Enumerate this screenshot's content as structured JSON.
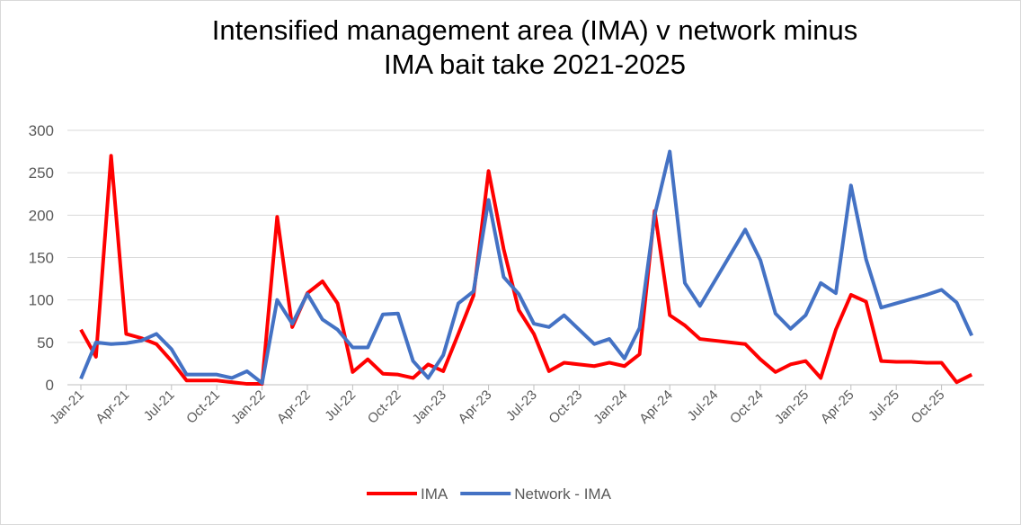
{
  "chart_data": {
    "type": "line",
    "title": [
      "Intensified management area  (IMA)  v network minus",
      "IMA bait take 2021-2025"
    ],
    "categories": [
      "Jan-21",
      null,
      null,
      "Apr-21",
      null,
      null,
      "Jul-21",
      null,
      null,
      "Oct-21",
      null,
      null,
      "Jan-22",
      null,
      null,
      "Apr-22",
      null,
      null,
      "Jul-22",
      null,
      null,
      "Oct-22",
      null,
      null,
      "Jan-23",
      null,
      null,
      "Apr-23",
      null,
      null,
      "Jul-23",
      null,
      null,
      "Oct-23",
      null,
      null,
      "Jan-24",
      null,
      null,
      "Apr-24",
      null,
      null,
      "Jul-24",
      null,
      null,
      "Oct-24",
      null,
      null,
      "Jan-25",
      null,
      null,
      "Apr-25",
      null,
      null,
      "Jul-25",
      null,
      null,
      "Oct-25",
      null,
      null
    ],
    "series": [
      {
        "name": "IMA",
        "color": "#ff0000",
        "values": [
          65,
          33,
          270,
          60,
          55,
          48,
          28,
          5,
          5,
          5,
          3,
          1,
          1,
          198,
          68,
          108,
          122,
          96,
          15,
          30,
          13,
          12,
          8,
          24,
          16,
          60,
          105,
          252,
          160,
          88,
          60,
          16,
          26,
          24,
          22,
          26,
          22,
          36,
          205,
          82,
          70,
          54,
          52,
          50,
          48,
          30,
          15,
          24,
          28,
          8,
          65,
          106,
          98,
          28,
          27,
          27,
          26,
          26,
          3,
          12
        ]
      },
      {
        "name": "Network - IMA",
        "color": "#4472c4",
        "values": [
          7,
          50,
          48,
          49,
          52,
          60,
          42,
          12,
          12,
          12,
          8,
          16,
          2,
          100,
          72,
          107,
          77,
          65,
          44,
          44,
          83,
          84,
          28,
          8,
          35,
          96,
          110,
          218,
          127,
          107,
          72,
          68,
          82,
          65,
          48,
          54,
          31,
          67,
          200,
          275,
          120,
          93,
          123,
          153,
          183,
          147,
          84,
          66,
          82,
          120,
          108,
          235,
          148,
          91,
          96,
          101,
          106,
          112,
          97,
          58
        ]
      }
    ],
    "ylim": [
      0,
      300
    ],
    "yticks": [
      0,
      50,
      100,
      150,
      200,
      250,
      300
    ],
    "grid": true,
    "legend": "bottom"
  }
}
